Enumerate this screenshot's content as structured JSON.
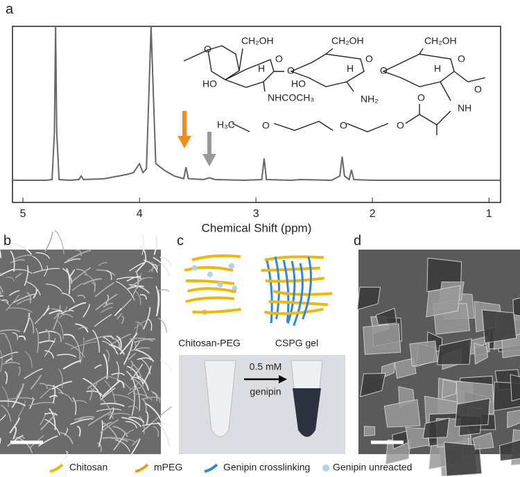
{
  "panel_labels": [
    "a",
    "b",
    "c",
    "d"
  ],
  "chart_data": {
    "type": "line",
    "x_label": "Chemical Shift (ppm)",
    "xlim": [
      5.09,
      0.9
    ],
    "xticks": [
      5,
      4,
      3,
      2,
      1
    ],
    "ylim": [
      0,
      100
    ],
    "series": [
      {
        "color": "#666666",
        "x": [
          5.09,
          4.8,
          4.75,
          4.73,
          4.72,
          4.71,
          4.69,
          4.6,
          4.52,
          4.5,
          4.48,
          4.3,
          4.1,
          4.05,
          4.0,
          3.97,
          3.94,
          3.92,
          3.9,
          3.88,
          3.86,
          3.82,
          3.78,
          3.7,
          3.62,
          3.6,
          3.58,
          3.45,
          3.4,
          3.35,
          3.1,
          2.95,
          2.93,
          2.91,
          2.7,
          2.62,
          2.35,
          2.28,
          2.26,
          2.24,
          2.2,
          2.18,
          2.16,
          2.0,
          1.5,
          0.9
        ],
        "values": [
          12.6,
          12.6,
          13,
          40,
          100,
          40,
          13,
          12.6,
          13,
          15,
          13,
          13.5,
          16,
          17,
          22,
          17,
          19,
          60,
          100,
          60,
          22,
          20,
          18,
          15,
          13.5,
          20,
          13.5,
          13,
          14,
          13,
          12.6,
          13,
          25,
          13,
          12.6,
          13,
          12.6,
          15,
          26,
          15,
          13,
          18.5,
          13,
          12.6,
          12.6,
          12.6
        ]
      }
    ]
  },
  "structure_labels": [
    "CH₂OH",
    "CH₂OH",
    "CH₂OH",
    "HO",
    "HO",
    "H",
    "H",
    "H",
    "NHCOCH₃",
    "NH₂",
    "NH",
    "H₃C",
    "O",
    "O",
    "O",
    "O",
    "O",
    "O",
    "O",
    "O",
    "O",
    "O",
    "O"
  ],
  "panel_c": {
    "left_label": "Chitosan-PEG",
    "right_label": "CSPG gel",
    "arrow_top": "0.5 mM",
    "arrow_bottom": "genipin"
  },
  "legend": [
    {
      "name": "Chitosan",
      "color": "#f2b705"
    },
    {
      "name": "mPEG",
      "color": "#f39c12"
    },
    {
      "name": "Genipin crosslinking",
      "color": "#2e86de"
    },
    {
      "name": "Genipin unreacted",
      "color": "#a9d3f0"
    }
  ]
}
